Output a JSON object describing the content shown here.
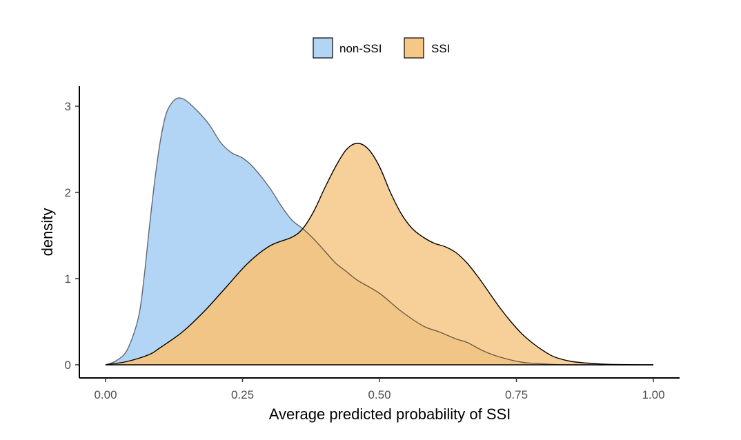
{
  "chart_data": {
    "type": "area",
    "title": "",
    "xlabel": "Average predicted probability of SSI",
    "ylabel": "density",
    "xlim": [
      0,
      1
    ],
    "ylim": [
      0,
      3.25
    ],
    "x_ticks": [
      0,
      0.25,
      0.5,
      0.75,
      1.0
    ],
    "x_tick_labels": [
      "0.00",
      "0.25",
      "0.50",
      "0.75",
      "1.00"
    ],
    "y_ticks": [
      0,
      1,
      2,
      3
    ],
    "y_tick_labels": [
      "0",
      "1",
      "2",
      "3"
    ],
    "grid": false,
    "legend": {
      "position": "top",
      "entries": [
        "non-SSI",
        "SSI"
      ]
    },
    "series": [
      {
        "name": "non-SSI",
        "color": "#b3d5f5",
        "points": [
          [
            0.0,
            0.0
          ],
          [
            0.02,
            0.05
          ],
          [
            0.04,
            0.18
          ],
          [
            0.06,
            0.55
          ],
          [
            0.07,
            1.0
          ],
          [
            0.08,
            1.6
          ],
          [
            0.09,
            2.15
          ],
          [
            0.1,
            2.6
          ],
          [
            0.11,
            2.9
          ],
          [
            0.12,
            3.03
          ],
          [
            0.13,
            3.09
          ],
          [
            0.14,
            3.09
          ],
          [
            0.15,
            3.05
          ],
          [
            0.17,
            2.93
          ],
          [
            0.19,
            2.78
          ],
          [
            0.21,
            2.58
          ],
          [
            0.23,
            2.46
          ],
          [
            0.25,
            2.4
          ],
          [
            0.27,
            2.29
          ],
          [
            0.3,
            2.05
          ],
          [
            0.32,
            1.85
          ],
          [
            0.34,
            1.68
          ],
          [
            0.36,
            1.58
          ],
          [
            0.38,
            1.46
          ],
          [
            0.4,
            1.32
          ],
          [
            0.42,
            1.18
          ],
          [
            0.44,
            1.08
          ],
          [
            0.46,
            0.98
          ],
          [
            0.5,
            0.83
          ],
          [
            0.54,
            0.62
          ],
          [
            0.58,
            0.45
          ],
          [
            0.61,
            0.38
          ],
          [
            0.64,
            0.3
          ],
          [
            0.66,
            0.26
          ],
          [
            0.69,
            0.16
          ],
          [
            0.72,
            0.09
          ],
          [
            0.76,
            0.03
          ],
          [
            0.8,
            0.01
          ],
          [
            0.85,
            0.0
          ],
          [
            1.0,
            0.0
          ]
        ]
      },
      {
        "name": "SSI",
        "color": "#f6c887",
        "points": [
          [
            0.0,
            0.0
          ],
          [
            0.04,
            0.04
          ],
          [
            0.08,
            0.12
          ],
          [
            0.1,
            0.2
          ],
          [
            0.14,
            0.38
          ],
          [
            0.18,
            0.62
          ],
          [
            0.22,
            0.9
          ],
          [
            0.26,
            1.18
          ],
          [
            0.3,
            1.38
          ],
          [
            0.34,
            1.48
          ],
          [
            0.36,
            1.58
          ],
          [
            0.38,
            1.78
          ],
          [
            0.4,
            2.05
          ],
          [
            0.42,
            2.3
          ],
          [
            0.44,
            2.5
          ],
          [
            0.46,
            2.57
          ],
          [
            0.48,
            2.5
          ],
          [
            0.5,
            2.3
          ],
          [
            0.52,
            2.0
          ],
          [
            0.54,
            1.75
          ],
          [
            0.56,
            1.58
          ],
          [
            0.58,
            1.48
          ],
          [
            0.6,
            1.41
          ],
          [
            0.62,
            1.37
          ],
          [
            0.64,
            1.3
          ],
          [
            0.66,
            1.18
          ],
          [
            0.68,
            1.02
          ],
          [
            0.7,
            0.84
          ],
          [
            0.72,
            0.66
          ],
          [
            0.74,
            0.5
          ],
          [
            0.76,
            0.36
          ],
          [
            0.78,
            0.25
          ],
          [
            0.8,
            0.16
          ],
          [
            0.82,
            0.09
          ],
          [
            0.85,
            0.04
          ],
          [
            0.88,
            0.02
          ],
          [
            0.92,
            0.005
          ],
          [
            1.0,
            0.0
          ]
        ]
      }
    ]
  }
}
